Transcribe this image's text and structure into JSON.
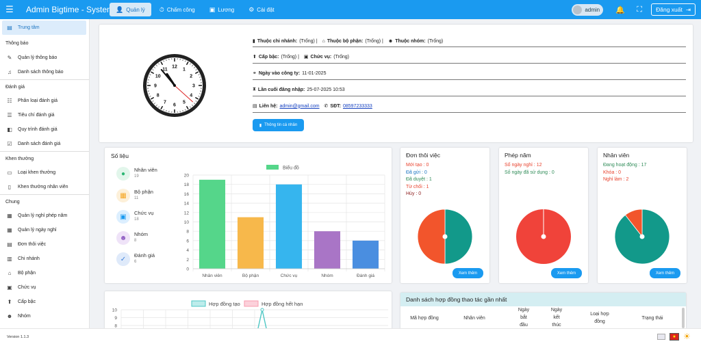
{
  "app": {
    "title": "Admin Bigtime - System"
  },
  "nav": {
    "tabs": [
      {
        "label": "Quản lý",
        "icon": "user-tie-icon"
      },
      {
        "label": "Chấm công",
        "icon": "clock-icon"
      },
      {
        "label": "Lương",
        "icon": "wallet-icon"
      },
      {
        "label": "Cài đặt",
        "icon": "settings-icon"
      }
    ],
    "user": "admin",
    "logout_label": "Đăng xuất"
  },
  "sidebar": {
    "active": "Trung tâm",
    "sections": [
      {
        "title": "Thông báo",
        "items": [
          "Quản lý thông báo",
          "Danh sách thông báo"
        ]
      },
      {
        "title": "Đánh giá",
        "items": [
          "Phân loại đánh giá",
          "Tiêu chí đánh giá",
          "Quy trình đánh giá",
          "Danh sách đánh giá"
        ]
      },
      {
        "title": "Khen thưởng",
        "items": [
          "Loại khen thưởng",
          "Khen thưởng nhân viên"
        ]
      },
      {
        "title": "Chung",
        "items": [
          "Quản lý nghỉ phép năm",
          "Quản lý ngày nghỉ",
          "Đơn thôi việc",
          "Chi nhánh",
          "Bộ phận",
          "Chức vụ",
          "Cấp bậc",
          "Nhóm"
        ]
      }
    ]
  },
  "profile": {
    "branch_label": "Thuộc chi nhánh:",
    "branch_value": "(Trống) |",
    "dept_label": "Thuộc bộ phận:",
    "dept_value": "(Trống) |",
    "group_label": "Thuộc nhóm:",
    "group_value": "(Trống)",
    "level_label": "Cấp bậc:",
    "level_value": "(Trống) |",
    "position_label": "Chức vụ:",
    "position_value": "(Trống)",
    "join_label": "Ngày vào công ty:",
    "join_value": "11-01-2025",
    "login_label": "Lần cuối đăng nhập:",
    "login_value": "25-07-2025 10:53",
    "contact_label": "Liên hệ:",
    "email": "admin@gmail.com",
    "phone_label": "SĐT:",
    "phone": "08597233333",
    "button": "Thông tin cá nhân",
    "clock": {
      "hour": 10,
      "minute": 53,
      "second": 22
    }
  },
  "stats": {
    "title": "Số liệu",
    "items": [
      {
        "label": "Nhân viên",
        "value": "19",
        "icon": "employee-icon",
        "color": "#2bb673"
      },
      {
        "label": "Bộ phận",
        "value": "11",
        "icon": "department-icon",
        "color": "#f5a623"
      },
      {
        "label": "Chức vụ",
        "value": "18",
        "icon": "briefcase-icon",
        "color": "#1a9af0"
      },
      {
        "label": "Nhóm",
        "value": "8",
        "icon": "group-icon",
        "color": "#8e5bc2"
      },
      {
        "label": "Đánh giá",
        "value": "6",
        "icon": "review-icon",
        "color": "#3b7fd9"
      }
    ]
  },
  "chart_data": [
    {
      "type": "bar",
      "legend": "Biểu đồ",
      "categories": [
        "Nhân viên",
        "Bộ phận",
        "Chức vụ",
        "Nhóm",
        "Đánh giá"
      ],
      "values": [
        19,
        11,
        18,
        8,
        6
      ],
      "colors": [
        "#55d68a",
        "#f7b84b",
        "#36b5ee",
        "#a975c6",
        "#4a8ee0"
      ],
      "ylim": [
        0,
        20
      ],
      "yticks": [
        0,
        2,
        4,
        6,
        8,
        10,
        12,
        14,
        16,
        18,
        20
      ],
      "grid": true
    },
    {
      "type": "line",
      "series": [
        {
          "name": "Hợp đồng tạo",
          "color": "#4ec7c4"
        },
        {
          "name": "Hợp đồng hết hạn",
          "color": "#f79aae"
        }
      ],
      "yticks": [
        10,
        9,
        8
      ],
      "ylim": [
        0,
        10
      ]
    }
  ],
  "resign": {
    "title": "Đơn thôi việc",
    "lines": [
      {
        "text": "Mới tạo : 0",
        "color": "#e8412c"
      },
      {
        "text": "Đã gửi : 0",
        "color": "#1a74c2"
      },
      {
        "text": "Đã duyệt : 1",
        "color": "#2e8b57"
      },
      {
        "text": "Từ chối : 1",
        "color": "#e8412c"
      },
      {
        "text": "Hủy : 0",
        "color": "#8b1a1a"
      }
    ],
    "button": "Xem thêm",
    "pie": [
      {
        "value": 1,
        "color": "#12998a"
      },
      {
        "value": 1,
        "color": "#f2552c"
      }
    ]
  },
  "leave": {
    "title": "Phép năm",
    "lines": [
      {
        "text": "Số ngày nghỉ : 12",
        "color": "#e8412c"
      },
      {
        "text": "Số ngày đã sử dụng : 0",
        "color": "#2e8b57"
      }
    ],
    "button": "Xem thêm",
    "pie": [
      {
        "value": 12,
        "color": "#f0433a"
      }
    ]
  },
  "employees": {
    "title": "Nhân viên",
    "lines": [
      {
        "text": "Đang hoạt động : 17",
        "color": "#2e8b57"
      },
      {
        "text": "Khóa : 0",
        "color": "#e8412c"
      },
      {
        "text": "Nghỉ làm : 2",
        "color": "#e8412c"
      }
    ],
    "button": "Xem thêm",
    "pie": [
      {
        "value": 17,
        "color": "#12998a"
      },
      {
        "value": 2,
        "color": "#f2552c"
      }
    ]
  },
  "contracts": {
    "title": "Danh sách hợp đồng thao tác gần nhất",
    "columns": [
      "Mã hợp đồng",
      "Nhân viên",
      "Ngày bắt đầu",
      "Ngày kết thúc",
      "Loại hợp đồng",
      "Trạng thái"
    ]
  },
  "footer": {
    "version": "Version 1.1.3"
  }
}
